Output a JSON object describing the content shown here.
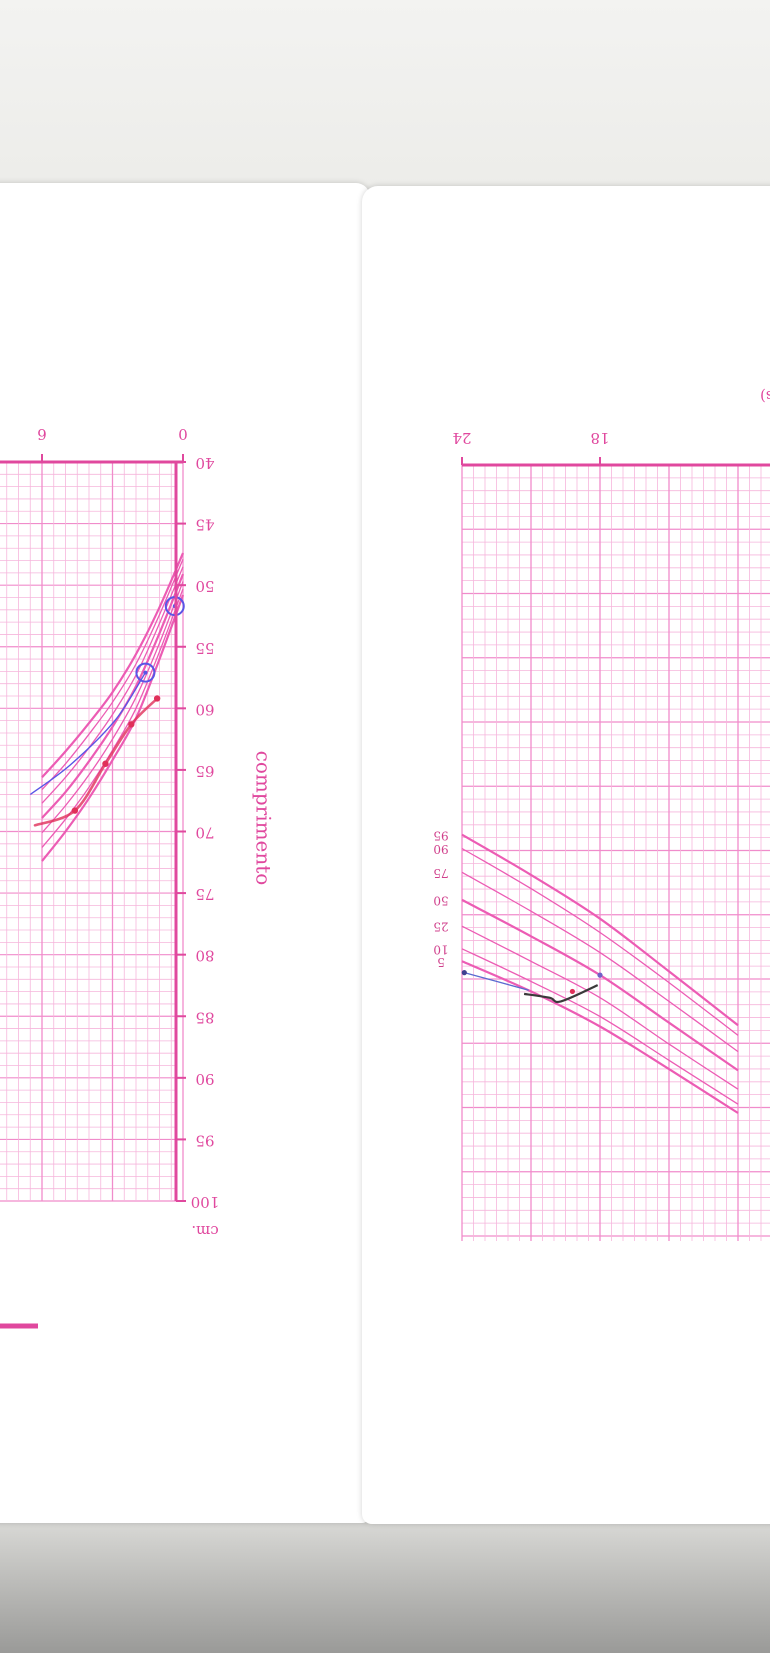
{
  "chart_data": [
    {
      "type": "line",
      "title": "",
      "xlabel": "",
      "ylabel": "comprimento",
      "y_unit": "cm.",
      "x_ticks": [
        0,
        6
      ],
      "y_ticks": [
        40,
        45,
        50,
        55,
        60,
        65,
        70,
        75,
        80,
        85,
        90,
        95,
        100
      ],
      "xlim": [
        0,
        6
      ],
      "ylim": [
        40,
        100
      ],
      "grid": true,
      "series": [
        {
          "name": "",
          "x": [
            0,
            1,
            2,
            3,
            4,
            5,
            6
          ],
          "values": [
            50.8,
            56.0,
            60.8,
            64.2,
            67.3,
            70.0,
            72.4
          ]
        },
        {
          "name": "",
          "x": [
            0,
            1,
            2,
            3,
            4,
            5,
            6
          ],
          "values": [
            50.3,
            55.4,
            60.0,
            63.4,
            66.4,
            69.0,
            71.3
          ]
        },
        {
          "name": "",
          "x": [
            0,
            1,
            2,
            3,
            4,
            5,
            6
          ],
          "values": [
            49.7,
            54.7,
            59.1,
            62.5,
            65.4,
            67.9,
            70.1
          ]
        },
        {
          "name": "",
          "x": [
            0,
            1,
            2,
            3,
            4,
            5,
            6
          ],
          "values": [
            49.1,
            53.9,
            58.2,
            61.5,
            64.3,
            66.8,
            68.9
          ]
        },
        {
          "name": "",
          "x": [
            0,
            1,
            2,
            3,
            4,
            5,
            6
          ],
          "values": [
            48.5,
            53.1,
            57.3,
            60.5,
            63.2,
            65.6,
            67.7
          ]
        },
        {
          "name": "",
          "x": [
            0,
            1,
            2,
            3,
            4,
            5,
            6
          ],
          "values": [
            47.9,
            52.4,
            56.4,
            59.5,
            62.1,
            64.5,
            66.6
          ]
        },
        {
          "name": "",
          "x": [
            0,
            1,
            2,
            3,
            4,
            5,
            6
          ],
          "values": [
            47.4,
            51.8,
            55.6,
            58.7,
            61.2,
            63.5,
            65.6
          ]
        }
      ],
      "measurements": [
        {
          "x": 0.35,
          "y": 51.7,
          "marker": "circle",
          "color": "#5a55e6"
        },
        {
          "x": 1.6,
          "y": 57.1,
          "marker": "circle",
          "color": "#5a55e6"
        },
        {
          "x": 1.1,
          "y": 59.2,
          "marker": "dot",
          "color": "#e0305a"
        },
        {
          "x": 2.2,
          "y": 61.3,
          "marker": "dot",
          "color": "#e0305a"
        },
        {
          "x": 3.3,
          "y": 64.5,
          "marker": "dot",
          "color": "#e0305a"
        },
        {
          "x": 4.6,
          "y": 68.3,
          "marker": "dot",
          "color": "#e0305a"
        }
      ]
    },
    {
      "type": "line",
      "title": "",
      "xlabel": "(meses)",
      "ylabel": "",
      "x_ticks": [
        18,
        24
      ],
      "xlim": [
        12,
        24
      ],
      "grid": true,
      "percentile_labels": [
        "5",
        "10",
        "25",
        "50",
        "75",
        "90",
        "95"
      ],
      "series": [
        {
          "name": "5",
          "x": [
            12,
            15,
            18,
            21,
            24
          ],
          "values": [
            75.4,
            78.9,
            82.3,
            85.1,
            87.5
          ]
        },
        {
          "name": "10",
          "x": [
            12,
            15,
            18,
            21,
            24
          ],
          "values": [
            76.1,
            79.6,
            83.1,
            85.9,
            88.5
          ]
        },
        {
          "name": "25",
          "x": [
            12,
            15,
            18,
            21,
            24
          ],
          "values": [
            77.3,
            80.9,
            84.6,
            87.5,
            90.3
          ]
        },
        {
          "name": "50",
          "x": [
            12,
            15,
            18,
            21,
            24
          ],
          "values": [
            78.8,
            82.6,
            86.4,
            89.5,
            92.4
          ]
        },
        {
          "name": "75",
          "x": [
            12,
            15,
            18,
            21,
            24
          ],
          "values": [
            80.3,
            84.3,
            88.2,
            91.5,
            94.6
          ]
        },
        {
          "name": "90",
          "x": [
            12,
            15,
            18,
            21,
            24
          ],
          "values": [
            81.6,
            85.8,
            89.8,
            93.3,
            96.5
          ]
        },
        {
          "name": "95",
          "x": [
            12,
            15,
            18,
            21,
            24
          ],
          "values": [
            82.4,
            86.7,
            90.9,
            94.4,
            97.6
          ]
        }
      ],
      "measurements": [
        {
          "x": 19.7,
          "y": 84.3,
          "marker": "line",
          "color": "#3a3a3a"
        },
        {
          "x": 23.9,
          "y": 86.6,
          "marker": "line",
          "color": "#5a6ad0"
        }
      ]
    }
  ]
}
